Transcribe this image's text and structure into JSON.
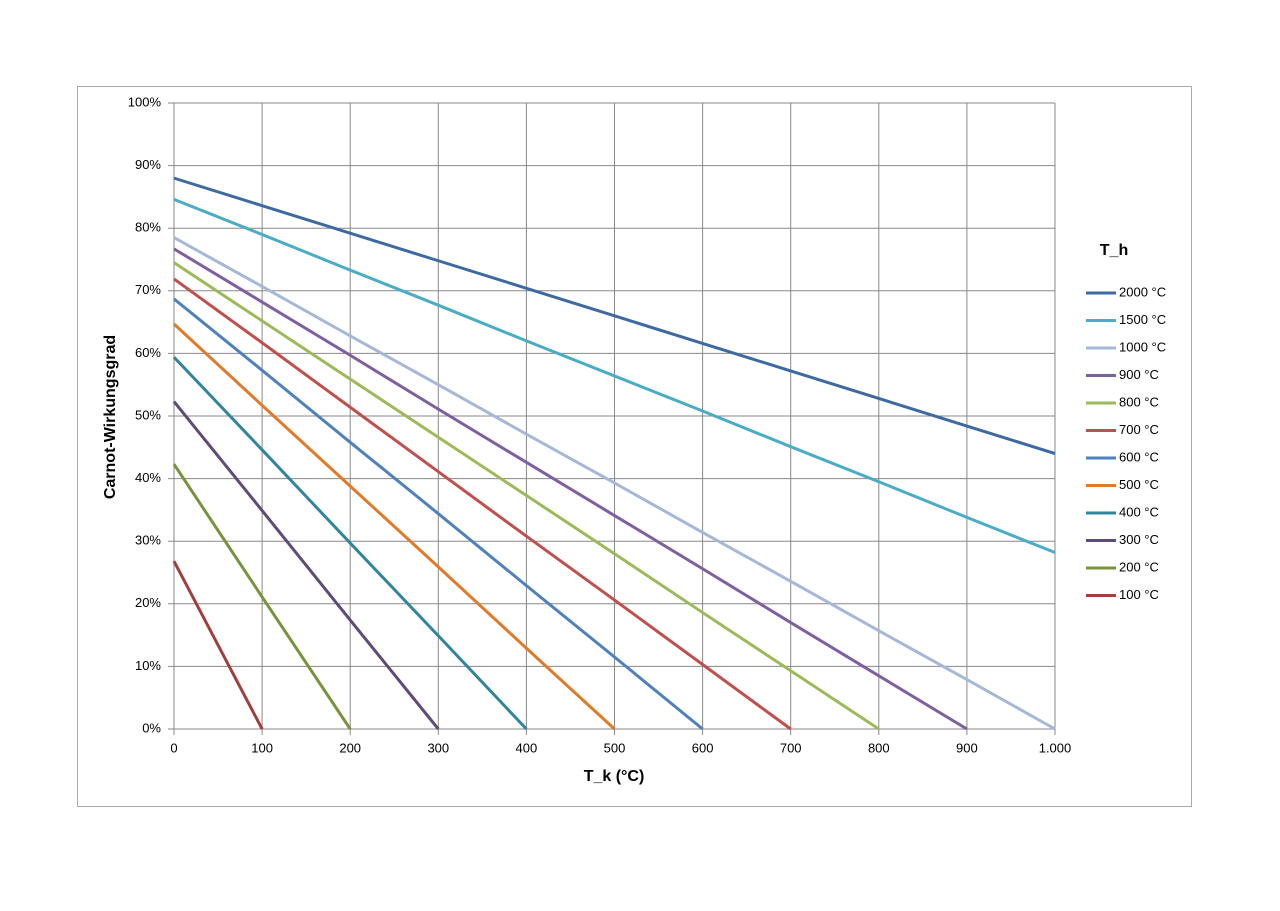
{
  "chart_data": {
    "type": "line",
    "y_label": "Carnot-Wirkungsgrad",
    "x_label": "T_k (°C)",
    "legend_title": "T_h",
    "legend_position": "right",
    "grid": true,
    "x": [
      0,
      100,
      200,
      300,
      400,
      500,
      600,
      700,
      800,
      900,
      1000
    ],
    "xlim": [
      0,
      1000
    ],
    "xticks": [
      0,
      100,
      200,
      300,
      400,
      500,
      600,
      700,
      800,
      900,
      {
        "value": 1000,
        "label": "1.000"
      }
    ],
    "ylim": [
      0,
      100
    ],
    "yticks": [
      {
        "value": 0,
        "label": "0%"
      },
      {
        "value": 10,
        "label": "10%"
      },
      {
        "value": 20,
        "label": "20%"
      },
      {
        "value": 30,
        "label": "30%"
      },
      {
        "value": 40,
        "label": "40%"
      },
      {
        "value": 50,
        "label": "50%"
      },
      {
        "value": 60,
        "label": "60%"
      },
      {
        "value": 70,
        "label": "70%"
      },
      {
        "value": 80,
        "label": "80%"
      },
      {
        "value": 90,
        "label": "90%"
      },
      {
        "value": 100,
        "label": "100%"
      }
    ],
    "series": [
      {
        "name": "2000 °C",
        "color": "#3d6aa0",
        "values": [
          88.0,
          83.6,
          79.2,
          74.8,
          70.4,
          66.0,
          61.6,
          57.2,
          52.8,
          48.4,
          44.0
        ]
      },
      {
        "name": "1500 °C",
        "color": "#4bacc6",
        "values": [
          84.6,
          79.0,
          73.3,
          67.7,
          62.0,
          56.4,
          50.8,
          45.1,
          39.5,
          33.8,
          28.2
        ]
      },
      {
        "name": "1000 °C",
        "color": "#a5b8d7",
        "values": [
          78.5,
          70.7,
          62.8,
          55.0,
          47.1,
          39.3,
          31.4,
          23.6,
          15.7,
          7.9,
          0
        ]
      },
      {
        "name": "900 °C",
        "color": "#7f5fa0",
        "values": [
          76.7,
          68.2,
          59.7,
          51.1,
          42.6,
          34.1,
          25.6,
          17.0,
          8.5,
          0,
          null
        ]
      },
      {
        "name": "800 °C",
        "color": "#9bbb59",
        "values": [
          74.5,
          65.2,
          55.9,
          46.6,
          37.3,
          28.0,
          18.6,
          9.3,
          0,
          null,
          null
        ]
      },
      {
        "name": "700 °C",
        "color": "#c0504d",
        "values": [
          71.9,
          61.7,
          51.4,
          41.1,
          30.8,
          20.6,
          10.3,
          0,
          null,
          null,
          null
        ]
      },
      {
        "name": "600 °C",
        "color": "#4f81bd",
        "values": [
          68.7,
          57.3,
          45.8,
          34.4,
          22.9,
          11.5,
          0,
          null,
          null,
          null,
          null
        ]
      },
      {
        "name": "500 °C",
        "color": "#e07b2a",
        "values": [
          64.7,
          51.7,
          38.8,
          25.9,
          12.9,
          0,
          null,
          null,
          null,
          null,
          null
        ]
      },
      {
        "name": "400 °C",
        "color": "#31859c",
        "values": [
          59.4,
          44.6,
          29.7,
          14.9,
          0,
          null,
          null,
          null,
          null,
          null,
          null
        ]
      },
      {
        "name": "300 °C",
        "color": "#5f4a7a",
        "values": [
          52.3,
          34.9,
          17.4,
          0,
          null,
          null,
          null,
          null,
          null,
          null,
          null
        ]
      },
      {
        "name": "200 °C",
        "color": "#77933c",
        "values": [
          42.3,
          21.1,
          0,
          null,
          null,
          null,
          null,
          null,
          null,
          null,
          null
        ]
      },
      {
        "name": "100 °C",
        "color": "#a0403d",
        "values": [
          26.8,
          0,
          null,
          null,
          null,
          null,
          null,
          null,
          null,
          null,
          null
        ]
      }
    ]
  }
}
